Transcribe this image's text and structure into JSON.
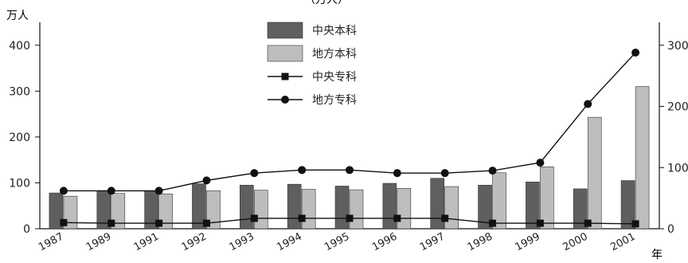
{
  "chart_data": {
    "type": "bar",
    "top_label": "（万人）",
    "left_unit": "万人",
    "x_unit": "年",
    "categories": [
      "1987",
      "1989",
      "1991",
      "1992",
      "1993",
      "1994",
      "1995",
      "1996",
      "1997",
      "1998",
      "1999",
      "2000",
      "2001"
    ],
    "left_axis": {
      "ylim": [
        0,
        450
      ],
      "ticks": [
        0,
        100,
        200,
        300,
        400
      ]
    },
    "right_axis": {
      "ylim": [
        0,
        337.5
      ],
      "ticks": [
        0,
        100,
        200,
        300
      ]
    },
    "series": [
      {
        "name": "中央本科",
        "kind": "bar",
        "axis": "left",
        "color": "#5f5f5f",
        "values": [
          78,
          83,
          83,
          98,
          95,
          97,
          93,
          99,
          110,
          95,
          102,
          87,
          105
        ]
      },
      {
        "name": "地方本科",
        "kind": "bar",
        "axis": "left",
        "color": "#bdbdbd",
        "values": [
          71,
          77,
          76,
          83,
          84,
          86,
          85,
          88,
          92,
          122,
          135,
          243,
          310
        ]
      },
      {
        "name": "中央专科",
        "kind": "line",
        "axis": "right",
        "marker": "square",
        "color": "#111111",
        "values": [
          10,
          9,
          9,
          9,
          17,
          17,
          17,
          17,
          17,
          9,
          9,
          9,
          8
        ]
      },
      {
        "name": "地方专科",
        "kind": "line",
        "axis": "right",
        "marker": "circle",
        "color": "#111111",
        "values": [
          62,
          62,
          62,
          79,
          91,
          96,
          96,
          91,
          91,
          95,
          108,
          204,
          288
        ]
      }
    ],
    "legend": {
      "position": "top-center"
    },
    "grid": false
  }
}
